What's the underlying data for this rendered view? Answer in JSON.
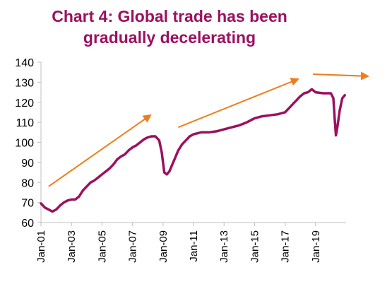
{
  "chart_data": {
    "type": "line",
    "title_lines": [
      "Chart 4: Global trade has been",
      "gradually decelerating"
    ],
    "xlabel": "",
    "ylabel": "",
    "ylim": [
      60,
      140
    ],
    "y_ticks": [
      60,
      70,
      80,
      90,
      100,
      110,
      120,
      130,
      140
    ],
    "x_ticks": [
      "Jan-01",
      "Jan-03",
      "Jan-05",
      "Jan-07",
      "Jan-09",
      "Jan-11",
      "Jan-13",
      "Jan-15",
      "Jan-17",
      "Jan-19"
    ],
    "grid": false,
    "legend": "none",
    "series": [
      {
        "color": "#9b1160",
        "points": [
          [
            "2001-01",
            69.5
          ],
          [
            "2001-04",
            67.5
          ],
          [
            "2001-07",
            66.5
          ],
          [
            "2001-10",
            65.5
          ],
          [
            "2002-01",
            66.5
          ],
          [
            "2002-04",
            68.5
          ],
          [
            "2002-07",
            70
          ],
          [
            "2002-10",
            71
          ],
          [
            "2003-01",
            71.5
          ],
          [
            "2003-04",
            71.5
          ],
          [
            "2003-07",
            73
          ],
          [
            "2003-10",
            76
          ],
          [
            "2004-01",
            78
          ],
          [
            "2004-04",
            80
          ],
          [
            "2004-07",
            81
          ],
          [
            "2004-10",
            82.5
          ],
          [
            "2005-01",
            84
          ],
          [
            "2005-04",
            85.5
          ],
          [
            "2005-07",
            87
          ],
          [
            "2005-10",
            89
          ],
          [
            "2006-01",
            91.5
          ],
          [
            "2006-04",
            93
          ],
          [
            "2006-07",
            94
          ],
          [
            "2006-10",
            96
          ],
          [
            "2007-01",
            97.5
          ],
          [
            "2007-04",
            98.5
          ],
          [
            "2007-07",
            100
          ],
          [
            "2007-10",
            101.5
          ],
          [
            "2008-01",
            102.5
          ],
          [
            "2008-04",
            103
          ],
          [
            "2008-07",
            103
          ],
          [
            "2008-10",
            101
          ],
          [
            "2008-12",
            95
          ],
          [
            "2009-02",
            85
          ],
          [
            "2009-04",
            84
          ],
          [
            "2009-06",
            85.5
          ],
          [
            "2009-09",
            90
          ],
          [
            "2010-01",
            96
          ],
          [
            "2010-04",
            99
          ],
          [
            "2010-07",
            101
          ],
          [
            "2010-10",
            103
          ],
          [
            "2011-01",
            104
          ],
          [
            "2011-04",
            104.5
          ],
          [
            "2011-07",
            105
          ],
          [
            "2011-10",
            105
          ],
          [
            "2012-01",
            105
          ],
          [
            "2012-07",
            105.5
          ],
          [
            "2013-01",
            106.5
          ],
          [
            "2013-07",
            107.5
          ],
          [
            "2014-01",
            108.5
          ],
          [
            "2014-07",
            110
          ],
          [
            "2015-01",
            112
          ],
          [
            "2015-07",
            113
          ],
          [
            "2016-01",
            113.5
          ],
          [
            "2016-07",
            114
          ],
          [
            "2017-01",
            115
          ],
          [
            "2017-04",
            117
          ],
          [
            "2017-07",
            119
          ],
          [
            "2017-10",
            121
          ],
          [
            "2018-01",
            123
          ],
          [
            "2018-04",
            124.5
          ],
          [
            "2018-07",
            125
          ],
          [
            "2018-10",
            126.5
          ],
          [
            "2019-01",
            125
          ],
          [
            "2019-07",
            124.5
          ],
          [
            "2020-01",
            124.5
          ],
          [
            "2020-03",
            122
          ],
          [
            "2020-04",
            112
          ],
          [
            "2020-05",
            103.5
          ],
          [
            "2020-06",
            107
          ],
          [
            "2020-08",
            116
          ],
          [
            "2020-10",
            122
          ],
          [
            "2020-12",
            123.5
          ]
        ]
      }
    ],
    "annotations": [
      {
        "type": "arrow",
        "from": [
          "2001-07",
          78
        ],
        "to": [
          "2008-03",
          113.5
        ],
        "color": "#ef7d1a"
      },
      {
        "type": "arrow",
        "from": [
          "2010-01",
          107.5
        ],
        "to": [
          "2017-11",
          131.5
        ],
        "color": "#ef7d1a"
      },
      {
        "type": "arrow",
        "from": [
          "2018-11",
          134
        ],
        "to": [
          "2022-06",
          133
        ],
        "color": "#ef7d1a"
      }
    ]
  },
  "colors": {
    "title": "#9b1160",
    "line": "#9b1160",
    "arrows": "#ef7d1a",
    "axis": "#bfbfbf",
    "text": "#000000"
  }
}
